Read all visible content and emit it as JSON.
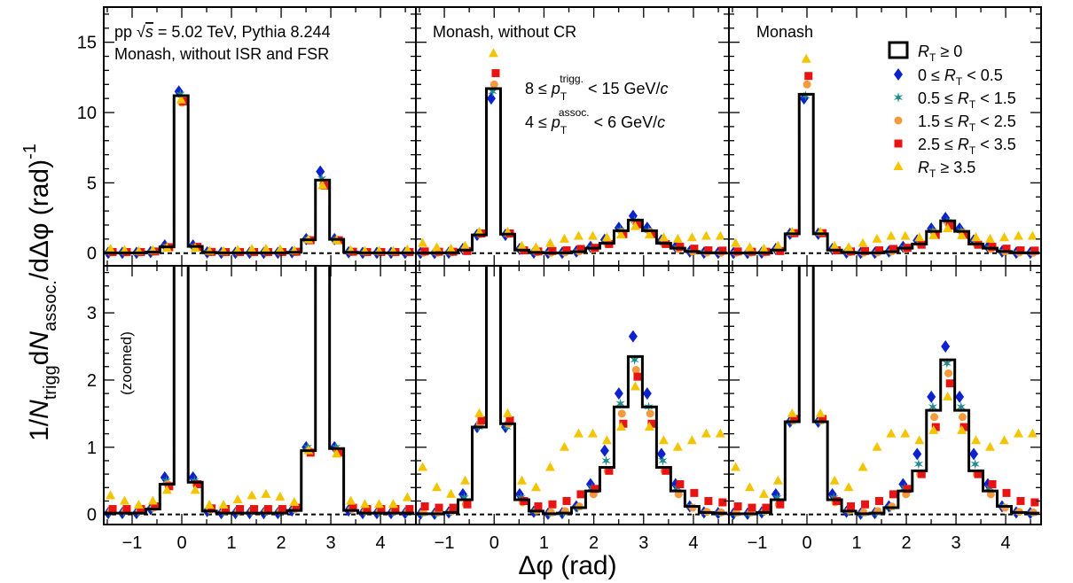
{
  "figure": {
    "ylabel": "1/N_trigg dN_assoc./dΔφ (rad)^-1",
    "xlabel": "Δφ (rad)",
    "zoom_label": "(zoomed)",
    "panel_titles": [
      "pp √s = 5.02 TeV, Pythia 8.244",
      "Monash, without CR",
      "Monash"
    ],
    "panel_subtitle": "Monash, without ISR and FSR",
    "cuts": [
      "8 ≤ p_T^trigg. < 15 GeV/c",
      "4 ≤ p_T^assoc. < 6 GeV/c"
    ]
  },
  "chart_data": {
    "type": "scatter",
    "x_bins": [
      -1.436,
      -1.152,
      -0.867,
      -0.583,
      -0.298,
      -0.014,
      0.271,
      0.556,
      0.84,
      1.125,
      1.41,
      1.694,
      1.979,
      2.263,
      2.548,
      2.833,
      3.117,
      3.402,
      3.686,
      3.971,
      4.256,
      4.54
    ],
    "xlim": [
      -1.5708,
      4.7124
    ],
    "xticks": [
      -1,
      0,
      1,
      2,
      3,
      4
    ],
    "ylim_top": [
      -0.9,
      17.5
    ],
    "yticks_top": [
      0,
      5,
      10,
      15
    ],
    "ylim_bottom": [
      -0.15,
      3.7
    ],
    "yticks_bottom": [
      0,
      1,
      2,
      3
    ],
    "legend_position": "top-right",
    "series": [
      {
        "name": "R_T ≥ 0",
        "marker": "step-line",
        "color": "#000000"
      },
      {
        "name": "0 ≤ R_T < 0.5",
        "marker": "diamond",
        "color": "#0d22cc"
      },
      {
        "name": "0.5 ≤ R_T < 1.5",
        "marker": "star",
        "color": "#1e8c8c"
      },
      {
        "name": "1.5 ≤ R_T < 2.5",
        "marker": "circle",
        "color": "#f39a3c"
      },
      {
        "name": "2.5 ≤ R_T < 3.5",
        "marker": "square",
        "color": "#e81414"
      },
      {
        "name": "R_T ≥ 3.5",
        "marker": "triangle",
        "color": "#f5c400"
      }
    ],
    "panels": [
      {
        "name": "Monash, without ISR and FSR",
        "values": {
          "all": [
            0.02,
            0.02,
            0.02,
            0.08,
            0.45,
            11.2,
            0.48,
            0.05,
            0.02,
            0.02,
            0.02,
            0.02,
            0.02,
            0.06,
            0.95,
            5.2,
            0.98,
            0.06,
            0.02,
            0.02,
            0.02,
            0.02
          ],
          "rt0": [
            0.02,
            0.02,
            0.02,
            0.08,
            0.55,
            11.5,
            0.55,
            0.05,
            0.02,
            0.02,
            0.02,
            0.02,
            0.02,
            0.06,
            1.0,
            5.8,
            1.0,
            0.06,
            0.02,
            0.02,
            0.02,
            0.02
          ],
          "rt1": [
            0.03,
            0.03,
            0.03,
            0.09,
            0.5,
            11.3,
            0.5,
            0.06,
            0.03,
            0.03,
            0.03,
            0.03,
            0.03,
            0.07,
            1.0,
            5.3,
            1.0,
            0.07,
            0.03,
            0.03,
            0.03,
            0.03
          ],
          "rt2": [
            0.05,
            0.05,
            0.05,
            0.1,
            0.45,
            10.7,
            0.45,
            0.07,
            0.05,
            0.05,
            0.05,
            0.05,
            0.05,
            0.08,
            0.95,
            4.9,
            0.95,
            0.08,
            0.05,
            0.05,
            0.05,
            0.05
          ],
          "rt3": [
            0.08,
            0.08,
            0.08,
            0.12,
            0.42,
            10.8,
            0.45,
            0.09,
            0.08,
            0.08,
            0.08,
            0.08,
            0.08,
            0.1,
            0.92,
            4.8,
            0.92,
            0.1,
            0.08,
            0.08,
            0.08,
            0.08
          ],
          "rt4": [
            0.28,
            0.2,
            0.14,
            0.2,
            0.36,
            10.9,
            0.36,
            0.14,
            0.14,
            0.22,
            0.28,
            0.3,
            0.26,
            0.18,
            0.95,
            4.8,
            0.9,
            0.2,
            0.15,
            0.15,
            0.15,
            0.25
          ]
        }
      },
      {
        "name": "Monash, without CR",
        "values": {
          "all": [
            0.01,
            0.01,
            0.03,
            0.22,
            1.3,
            11.7,
            1.35,
            0.22,
            0.05,
            0.01,
            0.02,
            0.1,
            0.35,
            0.7,
            1.6,
            2.35,
            1.6,
            0.7,
            0.35,
            0.12,
            0.03,
            0.02
          ],
          "rt0": [
            0.01,
            0.01,
            0.03,
            0.3,
            1.3,
            11.0,
            1.3,
            0.3,
            0.04,
            0.01,
            0.02,
            0.12,
            0.45,
            0.95,
            1.8,
            2.65,
            1.8,
            0.9,
            0.45,
            0.12,
            0.03,
            0.02
          ],
          "rt1": [
            0.01,
            0.01,
            0.03,
            0.25,
            1.3,
            11.5,
            1.3,
            0.25,
            0.05,
            0.01,
            0.02,
            0.1,
            0.4,
            0.8,
            1.65,
            2.3,
            1.6,
            0.8,
            0.4,
            0.12,
            0.03,
            0.02
          ],
          "rt2": [
            0.03,
            0.03,
            0.05,
            0.15,
            1.35,
            12.0,
            1.35,
            0.18,
            0.06,
            0.03,
            0.05,
            0.12,
            0.3,
            0.65,
            1.5,
            2.15,
            1.5,
            0.65,
            0.3,
            0.1,
            0.04,
            0.03
          ],
          "rt3": [
            0.12,
            0.1,
            0.1,
            0.15,
            1.4,
            12.8,
            1.4,
            0.2,
            0.12,
            0.15,
            0.2,
            0.3,
            0.38,
            0.65,
            1.35,
            2.05,
            1.35,
            0.65,
            0.45,
            0.32,
            0.2,
            0.18
          ],
          "rt4": [
            0.7,
            0.4,
            0.3,
            0.5,
            1.5,
            14.2,
            1.5,
            0.5,
            0.4,
            0.7,
            1.0,
            1.2,
            1.2,
            1.1,
            1.3,
            1.9,
            1.3,
            1.1,
            1.0,
            1.1,
            1.2,
            1.2
          ]
        }
      },
      {
        "name": "Monash",
        "values": {
          "all": [
            0.01,
            0.01,
            0.03,
            0.22,
            1.38,
            11.3,
            1.38,
            0.22,
            0.05,
            0.01,
            0.02,
            0.1,
            0.35,
            0.65,
            1.55,
            2.3,
            1.55,
            0.65,
            0.35,
            0.12,
            0.03,
            0.02
          ],
          "rt0": [
            0.01,
            0.01,
            0.03,
            0.3,
            1.38,
            11.0,
            1.38,
            0.3,
            0.04,
            0.01,
            0.02,
            0.12,
            0.45,
            0.9,
            1.75,
            2.5,
            1.75,
            0.9,
            0.45,
            0.12,
            0.03,
            0.02
          ],
          "rt1": [
            0.01,
            0.01,
            0.03,
            0.25,
            1.38,
            11.2,
            1.38,
            0.25,
            0.05,
            0.01,
            0.02,
            0.1,
            0.4,
            0.75,
            1.6,
            2.25,
            1.6,
            0.75,
            0.4,
            0.12,
            0.03,
            0.02
          ],
          "rt2": [
            0.03,
            0.03,
            0.05,
            0.15,
            1.4,
            12.0,
            1.4,
            0.18,
            0.06,
            0.03,
            0.05,
            0.12,
            0.3,
            0.6,
            1.45,
            2.1,
            1.45,
            0.6,
            0.3,
            0.1,
            0.04,
            0.03
          ],
          "rt3": [
            0.12,
            0.1,
            0.1,
            0.15,
            1.42,
            12.6,
            1.42,
            0.2,
            0.12,
            0.15,
            0.2,
            0.3,
            0.38,
            0.6,
            1.3,
            1.95,
            1.3,
            0.6,
            0.45,
            0.32,
            0.2,
            0.18
          ],
          "rt4": [
            0.7,
            0.4,
            0.3,
            0.5,
            1.5,
            13.8,
            1.5,
            0.5,
            0.4,
            0.7,
            1.0,
            1.2,
            1.2,
            1.1,
            1.25,
            1.75,
            1.25,
            1.1,
            1.0,
            1.1,
            1.2,
            1.2
          ]
        }
      }
    ]
  }
}
